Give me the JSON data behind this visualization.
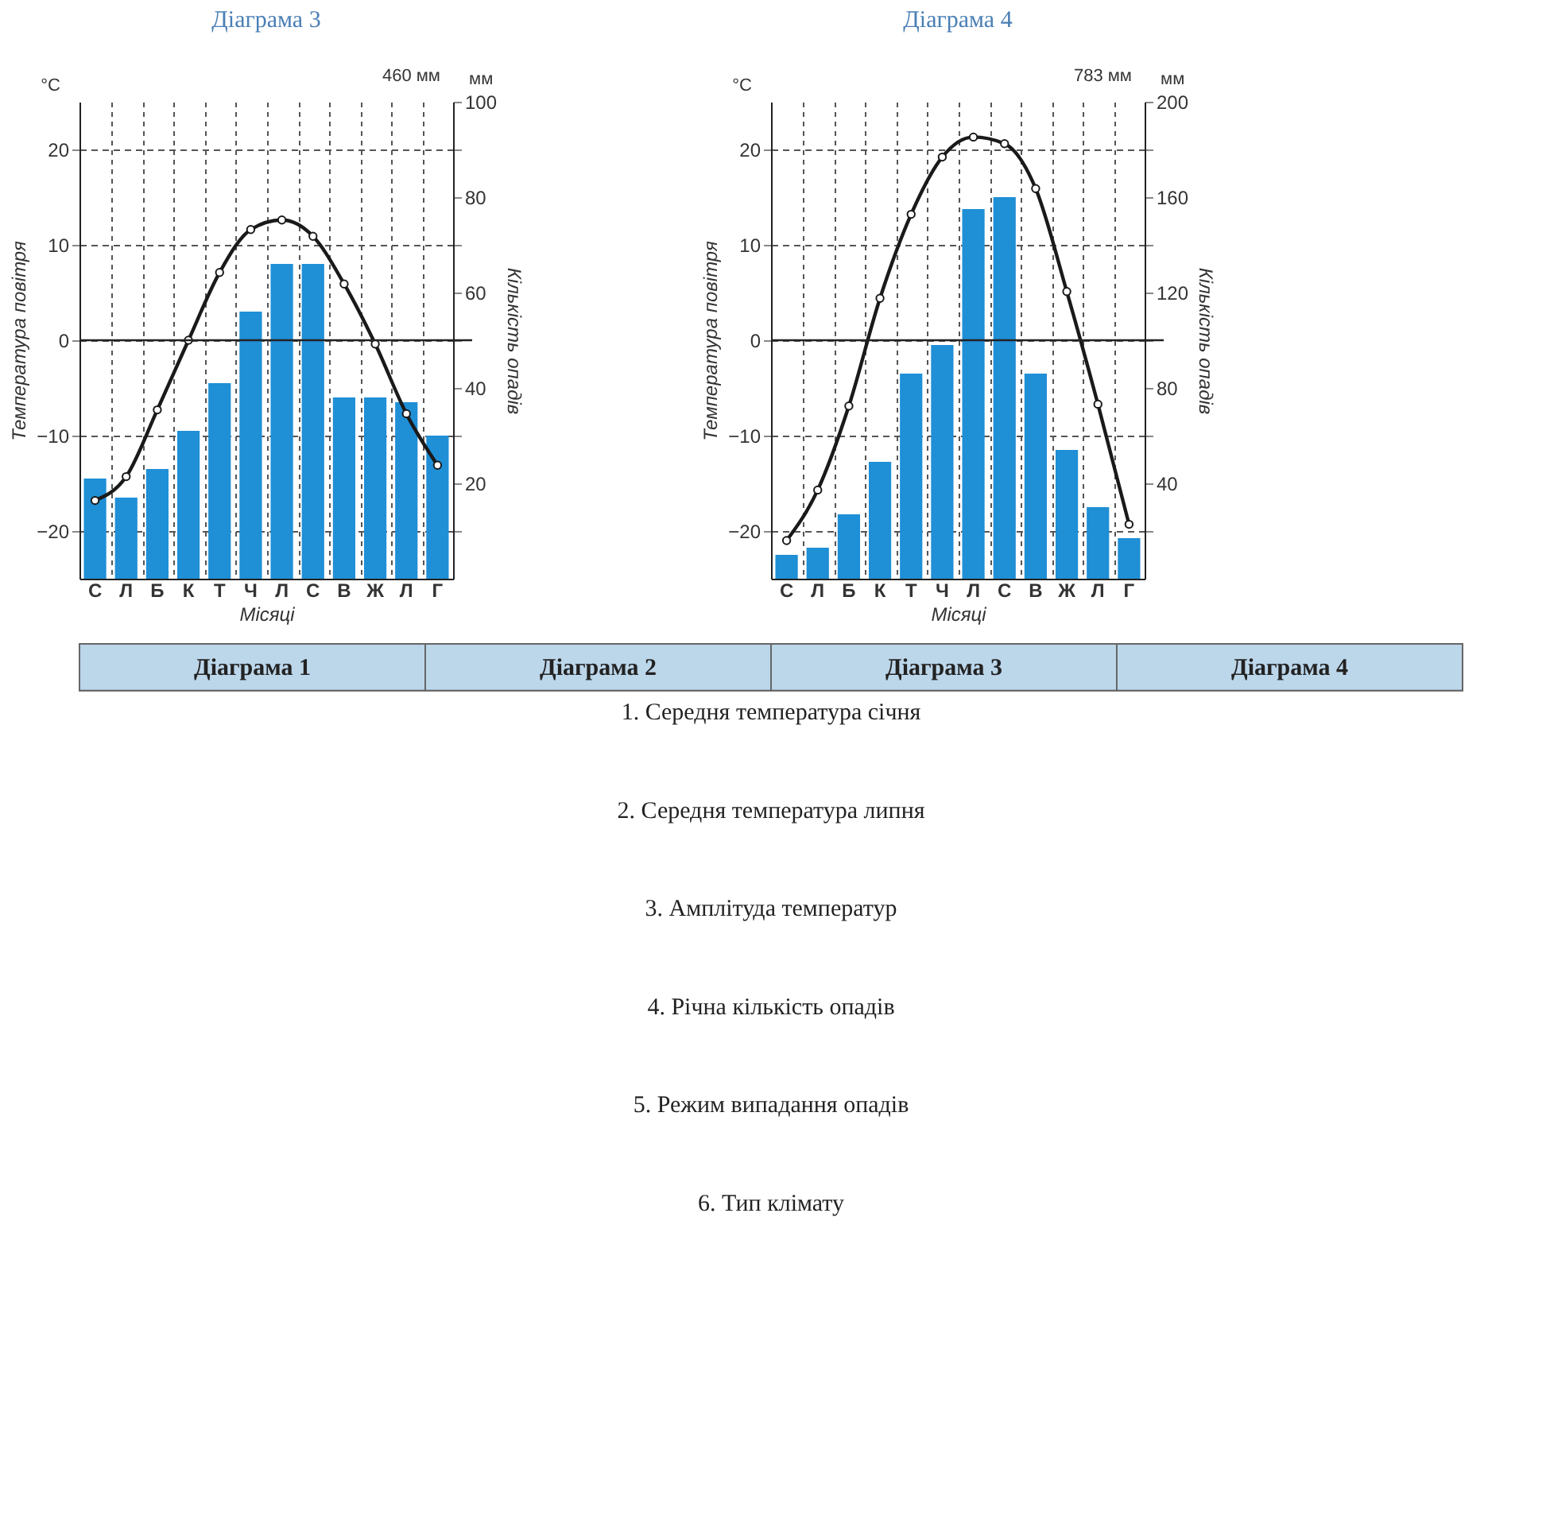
{
  "chart_data": [
    {
      "type": "bar",
      "title": "Діаграма 3",
      "categories": [
        "С",
        "Л",
        "Б",
        "К",
        "Т",
        "Ч",
        "Л",
        "С",
        "В",
        "Ж",
        "Л",
        "Г"
      ],
      "xlabel": "Місяці",
      "ylabel": "Температура повітря",
      "y2label": "Кількість опадів",
      "ylim": [
        -25,
        25
      ],
      "yticks": [
        -20,
        {
          "value": -15,
          "label": null
        },
        -10,
        {
          "value": -5,
          "label": null
        },
        0,
        {
          "value": 5,
          "label": null
        },
        10,
        {
          "value": 15,
          "label": null
        },
        20
      ],
      "y2lim": [
        0,
        100
      ],
      "y2ticks": [
        {
          "value": 10,
          "label": null
        },
        20,
        {
          "value": 30,
          "label": null
        },
        40,
        {
          "value": 50,
          "label": null
        },
        60,
        {
          "value": 70,
          "label": null
        },
        80,
        {
          "value": 90,
          "label": null
        },
        100
      ],
      "grid": true,
      "marker": "circle",
      "annotations": [
        "°C",
        "мм",
        "460 мм"
      ],
      "ref_lines": [
        {
          "axis": "y",
          "value": 0
        }
      ],
      "series": [
        {
          "type": "bar",
          "axis": "y2",
          "color": "#1f8fd6",
          "values": [
            21,
            17,
            23,
            31,
            41,
            56,
            66,
            66,
            38,
            38,
            37,
            30
          ]
        },
        {
          "type": "line",
          "color": "#1a1a1a",
          "values": [
            -16.8,
            -14.3,
            -7.3,
            0,
            7.1,
            11.6,
            12.6,
            10.9,
            5.9,
            -0.4,
            -7.7,
            -13.1
          ]
        }
      ]
    },
    {
      "type": "bar",
      "title": "Діаграма 4",
      "categories": [
        "С",
        "Л",
        "Б",
        "К",
        "Т",
        "Ч",
        "Л",
        "С",
        "В",
        "Ж",
        "Л",
        "Г"
      ],
      "xlabel": "Місяці",
      "ylabel": "Температура повітря",
      "y2label": "Кількість опадів",
      "ylim": [
        -25,
        25
      ],
      "yticks": [
        -20,
        {
          "value": -15,
          "label": null
        },
        -10,
        {
          "value": -5,
          "label": null
        },
        0,
        {
          "value": 5,
          "label": null
        },
        10,
        {
          "value": 15,
          "label": null
        },
        20
      ],
      "y2lim": [
        0,
        200
      ],
      "y2ticks": [
        {
          "value": 20,
          "label": null
        },
        40,
        {
          "value": 60,
          "label": null
        },
        80,
        {
          "value": 100,
          "label": null
        },
        120,
        {
          "value": 140,
          "label": null
        },
        160,
        {
          "value": 180,
          "label": null
        },
        200
      ],
      "grid": true,
      "marker": "circle",
      "annotations": [
        "°C",
        "мм",
        "783 мм"
      ],
      "ref_lines": [
        {
          "axis": "y",
          "value": 0
        }
      ],
      "series": [
        {
          "type": "bar",
          "axis": "y2",
          "color": "#1f8fd6",
          "values": [
            10,
            13,
            27,
            49,
            86,
            98,
            155,
            160,
            86,
            54,
            30,
            17
          ]
        },
        {
          "type": "line",
          "color": "#1a1a1a",
          "values": [
            -21,
            -15.7,
            -6.9,
            4.4,
            13.2,
            19.2,
            21.3,
            20.6,
            15.9,
            5.1,
            -6.7,
            -19.3
          ]
        }
      ]
    },
    {
      "type": "other",
      "categories": [
        "Діаграма 1",
        "Діаграма 2",
        "Діаграма 3",
        "Діаграма 4"
      ],
      "annotations": [
        "1. Середня температура січня",
        "2. Середня температура липня",
        "3. Амплітуда температур",
        "4. Річна кількість опадів",
        "5. Режим випадання опадів",
        "6. Тип клімату"
      ]
    }
  ]
}
